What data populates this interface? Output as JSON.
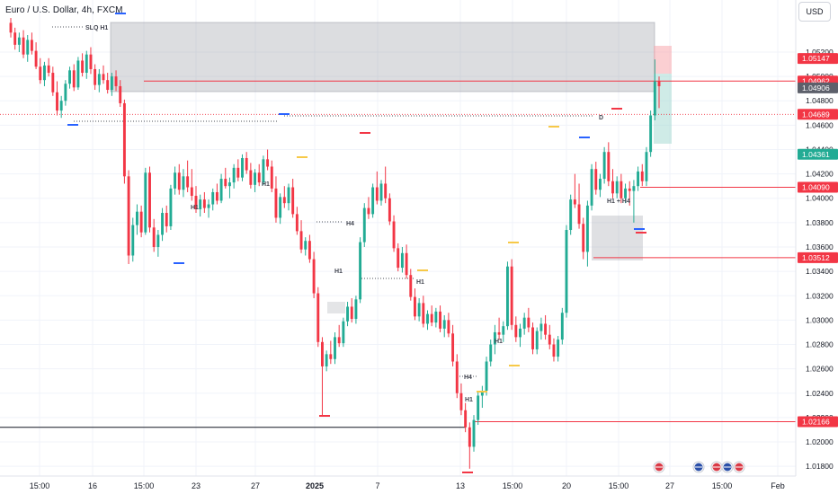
{
  "header": {
    "symbol_title": "Euro / U.S. Dollar, 4h, FXCM",
    "currency_button": "USD"
  },
  "colors": {
    "up": "#22ab94",
    "down": "#f23645",
    "zone": "#9598a1",
    "level": "#f23645",
    "marker_blue": "#2962ff",
    "marker_yellow": "#f7c948",
    "marker_red": "#f23645"
  },
  "chart_data": {
    "type": "candlestick",
    "y_ticks": [
      "1.05200",
      "1.05000",
      "1.04800",
      "1.04600",
      "1.04400",
      "1.04200",
      "1.04000",
      "1.03800",
      "1.03600",
      "1.03400",
      "1.03200",
      "1.03000",
      "1.02800",
      "1.02600",
      "1.02400",
      "1.02200",
      "1.02000",
      "1.01800"
    ],
    "y_range": [
      1.0172,
      1.0548
    ],
    "x_tick_labels": [
      "15:00",
      "16",
      "15:00",
      "23",
      "27",
      "2025",
      "7",
      "13",
      "15:00",
      "20",
      "15:00",
      "27",
      "15:00",
      "Feb"
    ],
    "price_labels": [
      {
        "text": "1.05147",
        "style": "red"
      },
      {
        "text": "1.04962",
        "style": "red"
      },
      {
        "text": "1.04906",
        "style": "grey"
      },
      {
        "text": "1.04689",
        "style": "red"
      },
      {
        "text": "1.04361",
        "style": "green"
      },
      {
        "text": "1.04090",
        "style": "red"
      },
      {
        "text": "1.03512",
        "style": "red"
      },
      {
        "text": "1.02166",
        "style": "red"
      }
    ],
    "annotations": [
      "SLQ H1",
      "H1",
      "H1",
      "H4",
      "H1",
      "H1",
      "D",
      "H1 + H4",
      "H4",
      "H1",
      "H1"
    ],
    "key_levels": [
      1.04962,
      1.04689,
      1.0409,
      1.03512,
      1.02166,
      1.0212
    ],
    "ohlc": [
      [
        1.0544,
        1.0548,
        1.0532,
        1.0536
      ],
      [
        1.0536,
        1.054,
        1.0522,
        1.0526
      ],
      [
        1.0526,
        1.0536,
        1.052,
        1.0532
      ],
      [
        1.0532,
        1.0538,
        1.0515,
        1.0518
      ],
      [
        1.0518,
        1.0534,
        1.0512,
        1.053
      ],
      [
        1.053,
        1.0536,
        1.0518,
        1.0521
      ],
      [
        1.0521,
        1.0528,
        1.0506,
        1.0508
      ],
      [
        1.0508,
        1.0515,
        1.0494,
        1.0497
      ],
      [
        1.0497,
        1.0512,
        1.0492,
        1.0509
      ],
      [
        1.0509,
        1.0515,
        1.05,
        1.0503
      ],
      [
        1.0503,
        1.0508,
        1.0484,
        1.0487
      ],
      [
        1.0487,
        1.0496,
        1.0468,
        1.0472
      ],
      [
        1.0472,
        1.0484,
        1.0466,
        1.048
      ],
      [
        1.048,
        1.0497,
        1.0476,
        1.0494
      ],
      [
        1.0494,
        1.0508,
        1.049,
        1.0505
      ],
      [
        1.0505,
        1.051,
        1.0488,
        1.0491
      ],
      [
        1.0491,
        1.0516,
        1.0489,
        1.0513
      ],
      [
        1.0513,
        1.0519,
        1.05,
        1.0503
      ],
      [
        1.0503,
        1.0521,
        1.0498,
        1.0518
      ],
      [
        1.0518,
        1.0524,
        1.0502,
        1.0506
      ],
      [
        1.0506,
        1.051,
        1.0489,
        1.0493
      ],
      [
        1.0493,
        1.0506,
        1.0487,
        1.0502
      ],
      [
        1.0502,
        1.0509,
        1.0494,
        1.0497
      ],
      [
        1.0497,
        1.0503,
        1.0486,
        1.0489
      ],
      [
        1.0489,
        1.0503,
        1.0484,
        1.05
      ],
      [
        1.05,
        1.0505,
        1.0488,
        1.0492
      ],
      [
        1.0492,
        1.0497,
        1.0475,
        1.0478
      ],
      [
        1.0478,
        1.0481,
        1.0412,
        1.0418
      ],
      [
        1.0418,
        1.0423,
        1.0346,
        1.0353
      ],
      [
        1.0353,
        1.0384,
        1.0348,
        1.0378
      ],
      [
        1.0378,
        1.0395,
        1.037,
        1.0389
      ],
      [
        1.0389,
        1.0394,
        1.0368,
        1.0372
      ],
      [
        1.0372,
        1.0425,
        1.037,
        1.0421
      ],
      [
        1.0421,
        1.0426,
        1.0372,
        1.0376
      ],
      [
        1.0376,
        1.0383,
        1.0356,
        1.036
      ],
      [
        1.036,
        1.0374,
        1.0352,
        1.037
      ],
      [
        1.037,
        1.0392,
        1.0365,
        1.0388
      ],
      [
        1.0388,
        1.0394,
        1.0372,
        1.0377
      ],
      [
        1.0377,
        1.0411,
        1.0374,
        1.0408
      ],
      [
        1.0408,
        1.0426,
        1.0403,
        1.0421
      ],
      [
        1.0421,
        1.0428,
        1.0403,
        1.0407
      ],
      [
        1.0407,
        1.0424,
        1.0401,
        1.0418
      ],
      [
        1.0418,
        1.0431,
        1.0405,
        1.0409
      ],
      [
        1.0409,
        1.0424,
        1.0398,
        1.0402
      ],
      [
        1.0402,
        1.041,
        1.0388,
        1.0391
      ],
      [
        1.0391,
        1.0403,
        1.0385,
        1.0399
      ],
      [
        1.0399,
        1.0405,
        1.0388,
        1.0392
      ],
      [
        1.0392,
        1.0399,
        1.0384,
        1.0395
      ],
      [
        1.0395,
        1.0408,
        1.039,
        1.0405
      ],
      [
        1.0405,
        1.0412,
        1.0395,
        1.0398
      ],
      [
        1.0398,
        1.042,
        1.0396,
        1.0416
      ],
      [
        1.0416,
        1.0425,
        1.0408,
        1.041
      ],
      [
        1.041,
        1.0417,
        1.04,
        1.0413
      ],
      [
        1.0413,
        1.0428,
        1.0408,
        1.0425
      ],
      [
        1.0425,
        1.0432,
        1.0414,
        1.0417
      ],
      [
        1.0417,
        1.0436,
        1.0414,
        1.0433
      ],
      [
        1.0433,
        1.0438,
        1.042,
        1.0423
      ],
      [
        1.0423,
        1.0429,
        1.0408,
        1.0411
      ],
      [
        1.0411,
        1.0424,
        1.0405,
        1.0421
      ],
      [
        1.0421,
        1.0428,
        1.041,
        1.0413
      ],
      [
        1.0413,
        1.0435,
        1.0411,
        1.0432
      ],
      [
        1.0432,
        1.044,
        1.0423,
        1.0426
      ],
      [
        1.0426,
        1.0431,
        1.0405,
        1.0408
      ],
      [
        1.0408,
        1.0418,
        1.038,
        1.0384
      ],
      [
        1.0384,
        1.0404,
        1.0379,
        1.0401
      ],
      [
        1.0401,
        1.041,
        1.0392,
        1.0396
      ],
      [
        1.0396,
        1.0412,
        1.039,
        1.0409
      ],
      [
        1.0409,
        1.0416,
        1.0384,
        1.0387
      ],
      [
        1.0387,
        1.0393,
        1.037,
        1.0373
      ],
      [
        1.0373,
        1.0382,
        1.0355,
        1.0358
      ],
      [
        1.0358,
        1.0368,
        1.0353,
        1.0365
      ],
      [
        1.0365,
        1.037,
        1.0347,
        1.035
      ],
      [
        1.035,
        1.0356,
        1.0318,
        1.0322
      ],
      [
        1.0322,
        1.0327,
        1.0278,
        1.0282
      ],
      [
        1.0282,
        1.0286,
        1.0222,
        1.0262
      ],
      [
        1.0262,
        1.0275,
        1.0258,
        1.0272
      ],
      [
        1.0272,
        1.0283,
        1.0264,
        1.0268
      ],
      [
        1.0268,
        1.029,
        1.0264,
        1.0286
      ],
      [
        1.0286,
        1.0296,
        1.0278,
        1.0281
      ],
      [
        1.0281,
        1.0302,
        1.0278,
        1.0299
      ],
      [
        1.0299,
        1.0315,
        1.0295,
        1.0311
      ],
      [
        1.0311,
        1.0318,
        1.0298,
        1.0301
      ],
      [
        1.0301,
        1.032,
        1.0297,
        1.0317
      ],
      [
        1.0317,
        1.0368,
        1.0314,
        1.0364
      ],
      [
        1.0364,
        1.0396,
        1.036,
        1.0392
      ],
      [
        1.0392,
        1.0401,
        1.0383,
        1.0387
      ],
      [
        1.0387,
        1.0412,
        1.0384,
        1.0409
      ],
      [
        1.0409,
        1.0422,
        1.0395,
        1.0398
      ],
      [
        1.0398,
        1.0415,
        1.0394,
        1.0412
      ],
      [
        1.0412,
        1.0426,
        1.0396,
        1.04
      ],
      [
        1.04,
        1.0404,
        1.0378,
        1.0381
      ],
      [
        1.0381,
        1.0386,
        1.0356,
        1.0359
      ],
      [
        1.0359,
        1.0363,
        1.034,
        1.0343
      ],
      [
        1.0343,
        1.036,
        1.0339,
        1.0355
      ],
      [
        1.0355,
        1.0362,
        1.0334,
        1.0337
      ],
      [
        1.0337,
        1.0342,
        1.0316,
        1.0319
      ],
      [
        1.0319,
        1.0326,
        1.03,
        1.0303
      ],
      [
        1.0303,
        1.0318,
        1.0299,
        1.0314
      ],
      [
        1.0314,
        1.032,
        1.0294,
        1.0297
      ],
      [
        1.0297,
        1.0308,
        1.0292,
        1.0305
      ],
      [
        1.0305,
        1.0312,
        1.0295,
        1.0298
      ],
      [
        1.0298,
        1.031,
        1.0294,
        1.0307
      ],
      [
        1.0307,
        1.0312,
        1.029,
        1.0293
      ],
      [
        1.0293,
        1.0304,
        1.0286,
        1.03
      ],
      [
        1.03,
        1.0306,
        1.0286,
        1.0289
      ],
      [
        1.0289,
        1.0296,
        1.0262,
        1.0266
      ],
      [
        1.0266,
        1.0272,
        1.0236,
        1.024
      ],
      [
        1.024,
        1.0248,
        1.0222,
        1.0226
      ],
      [
        1.0226,
        1.0232,
        1.0208,
        1.0212
      ],
      [
        1.0212,
        1.0216,
        1.0178,
        1.0196
      ],
      [
        1.0196,
        1.0222,
        1.0192,
        1.0218
      ],
      [
        1.0218,
        1.0242,
        1.0214,
        1.0238
      ],
      [
        1.0238,
        1.0246,
        1.0228,
        1.0242
      ],
      [
        1.0242,
        1.027,
        1.0238,
        1.0266
      ],
      [
        1.0266,
        1.0284,
        1.0262,
        1.028
      ],
      [
        1.028,
        1.0296,
        1.0272,
        1.029
      ],
      [
        1.029,
        1.0302,
        1.0284,
        1.0288
      ],
      [
        1.0288,
        1.0299,
        1.0282,
        1.0295
      ],
      [
        1.0295,
        1.0348,
        1.0292,
        1.0344
      ],
      [
        1.0344,
        1.035,
        1.0292,
        1.0296
      ],
      [
        1.0296,
        1.0303,
        1.0282,
        1.0286
      ],
      [
        1.0286,
        1.0297,
        1.0278,
        1.0293
      ],
      [
        1.0293,
        1.0306,
        1.0288,
        1.0302
      ],
      [
        1.0302,
        1.031,
        1.029,
        1.0294
      ],
      [
        1.0294,
        1.0298,
        1.0272,
        1.0276
      ],
      [
        1.0276,
        1.0294,
        1.0272,
        1.0291
      ],
      [
        1.0291,
        1.0302,
        1.0284,
        1.0297
      ],
      [
        1.0297,
        1.0304,
        1.0284,
        1.0288
      ],
      [
        1.0288,
        1.0296,
        1.0276,
        1.028
      ],
      [
        1.028,
        1.0285,
        1.0266,
        1.027
      ],
      [
        1.027,
        1.0287,
        1.0266,
        1.0284
      ],
      [
        1.0284,
        1.031,
        1.028,
        1.0306
      ],
      [
        1.0306,
        1.0378,
        1.0302,
        1.0374
      ],
      [
        1.0374,
        1.0403,
        1.037,
        1.0399
      ],
      [
        1.0399,
        1.042,
        1.0392,
        1.0395
      ],
      [
        1.0395,
        1.0412,
        1.0375,
        1.0379
      ],
      [
        1.0379,
        1.0384,
        1.035,
        1.0356
      ],
      [
        1.0356,
        1.0398,
        1.0344,
        1.0394
      ],
      [
        1.0394,
        1.0428,
        1.039,
        1.0424
      ],
      [
        1.0424,
        1.043,
        1.0403,
        1.0407
      ],
      [
        1.0407,
        1.042,
        1.0401,
        1.0416
      ],
      [
        1.0416,
        1.0442,
        1.0412,
        1.0438
      ],
      [
        1.0438,
        1.0446,
        1.041,
        1.0414
      ],
      [
        1.0414,
        1.0424,
        1.04,
        1.0404
      ],
      [
        1.0404,
        1.0418,
        1.04,
        1.0414
      ],
      [
        1.0414,
        1.042,
        1.0396,
        1.04
      ],
      [
        1.04,
        1.0412,
        1.0396,
        1.0408
      ],
      [
        1.0408,
        1.0414,
        1.0394,
        1.0406
      ],
      [
        1.0406,
        1.0415,
        1.038,
        1.041
      ],
      [
        1.041,
        1.0426,
        1.0406,
        1.0422
      ],
      [
        1.0422,
        1.0428,
        1.041,
        1.0414
      ],
      [
        1.0414,
        1.0442,
        1.041,
        1.0438
      ],
      [
        1.0438,
        1.0472,
        1.0434,
        1.0468
      ],
      [
        1.0468,
        1.0514,
        1.0464,
        1.0496
      ],
      [
        1.0496,
        1.05,
        1.0474,
        1.0492
      ]
    ]
  }
}
